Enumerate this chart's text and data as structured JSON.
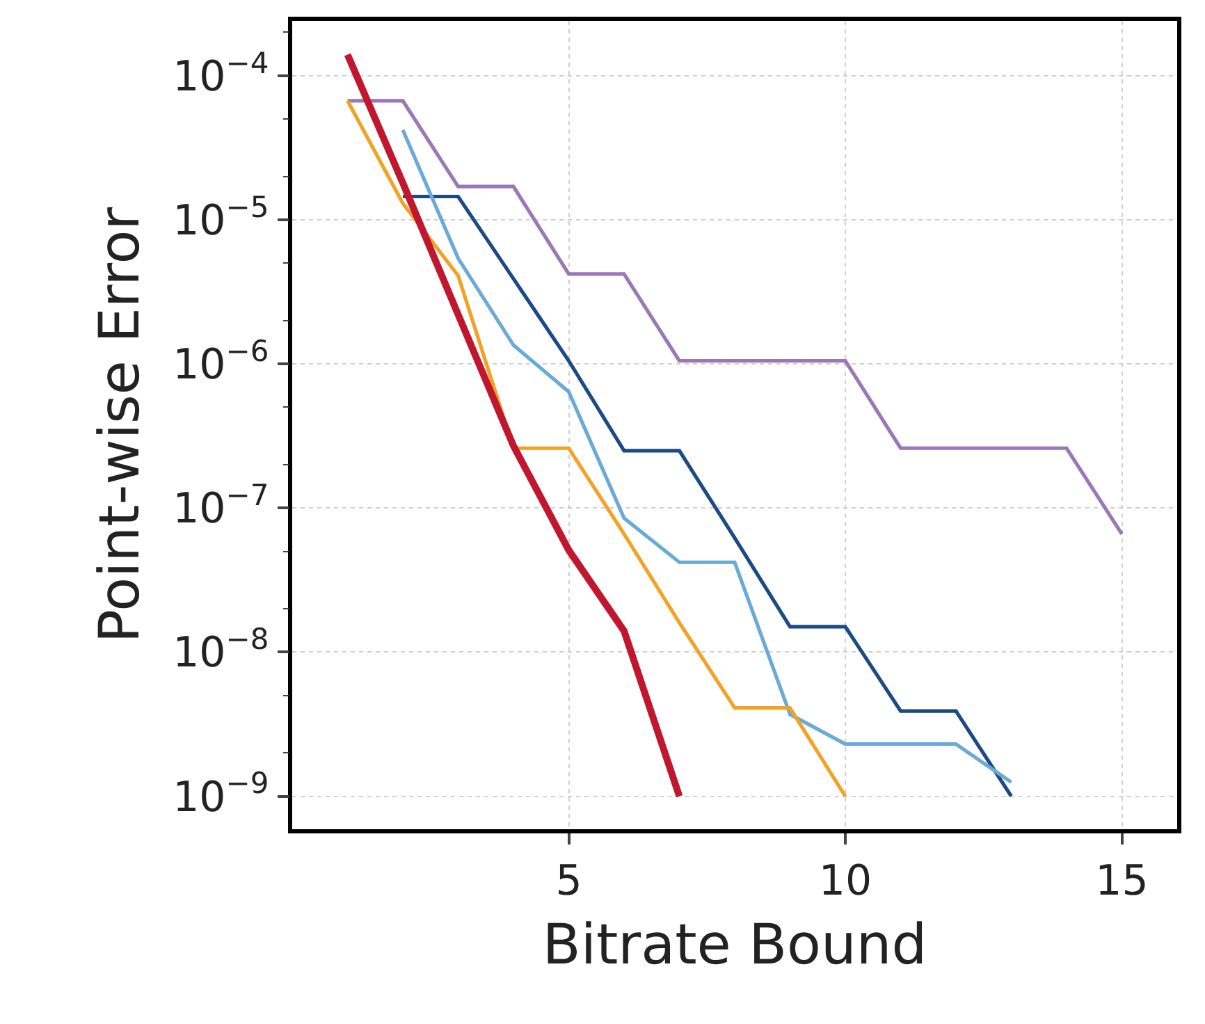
{
  "chart_data": {
    "type": "line",
    "xlabel": "Bitrate Bound",
    "ylabel": "Point-wise Error",
    "log": "y",
    "grid": true,
    "marker": "none",
    "line_style": "solid",
    "xlim": [
      0,
      16
    ],
    "ylim": [
      5.9e-10,
      0.00024
    ],
    "xticks": [
      5,
      10,
      15
    ],
    "yticks": [
      {
        "value": 1e-09,
        "label": "10$^{−9}$"
      },
      {
        "value": 1e-08,
        "label": "10$^{−8}$"
      },
      {
        "value": 1e-07,
        "label": "10$^{−7}$"
      },
      {
        "value": 1e-06,
        "label": "10$^{−6}$"
      },
      {
        "value": 1e-05,
        "label": "10$^{−5}$"
      },
      {
        "value": 0.0001,
        "label": "10$^{−4}$"
      }
    ],
    "series": [
      {
        "color": "#9a78b8",
        "x": [
          1,
          2,
          3,
          4,
          5,
          6,
          7,
          8,
          9,
          10,
          11,
          12,
          13,
          14,
          15
        ],
        "values": [
          6.7e-05,
          6.7e-05,
          1.7e-05,
          1.7e-05,
          4.2e-06,
          4.2e-06,
          1.05e-06,
          1.05e-06,
          1.05e-06,
          1.05e-06,
          2.6e-07,
          2.6e-07,
          2.6e-07,
          2.6e-07,
          6.6e-08
        ]
      },
      {
        "color": "#1c4a85",
        "x": [
          2,
          3,
          4,
          5,
          6,
          7,
          8,
          9,
          10,
          11,
          12,
          13
        ],
        "values": [
          1.45e-05,
          1.45e-05,
          3.9e-06,
          1.05e-06,
          2.5e-07,
          2.5e-07,
          6.2e-08,
          1.5e-08,
          1.5e-08,
          3.9e-09,
          3.9e-09,
          1e-09
        ]
      },
      {
        "color": "#6aaad4",
        "x": [
          2,
          3,
          4,
          5,
          6,
          7,
          8,
          9,
          10,
          11,
          12,
          13
        ],
        "values": [
          4.2e-05,
          5.4e-06,
          1.35e-06,
          6.4e-07,
          8.5e-08,
          4.2e-08,
          4.2e-08,
          3.7e-09,
          2.3e-09,
          2.3e-09,
          2.3e-09,
          1.25e-09
        ]
      },
      {
        "color": "#f2a224",
        "x": [
          1,
          2,
          3,
          4,
          5,
          6,
          7,
          8,
          9,
          10
        ],
        "values": [
          6.7e-05,
          1.3e-05,
          4.1e-06,
          2.6e-07,
          2.6e-07,
          6.6e-08,
          1.6e-08,
          4.1e-09,
          4.1e-09,
          1e-09
        ]
      },
      {
        "color": "#c0172f",
        "x": [
          1,
          2,
          3,
          4,
          5,
          6,
          7
        ],
        "values": [
          0.00014,
          1.8e-05,
          2.2e-06,
          2.7e-07,
          5.1e-08,
          1.4e-08,
          1e-09
        ]
      }
    ]
  }
}
